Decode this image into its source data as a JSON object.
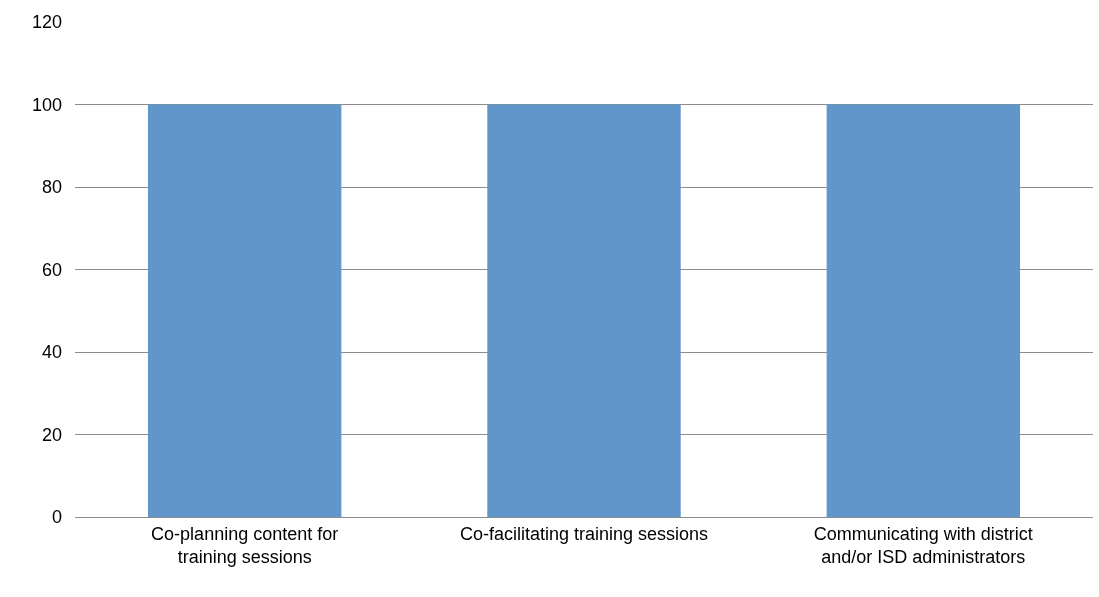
{
  "chart_data": {
    "type": "bar",
    "categories": [
      "Co-planning content for\ntraining sessions",
      "Co-facilitating training sessions",
      "Communicating with district\nand/or ISD administrators"
    ],
    "values": [
      100,
      100,
      100
    ],
    "color": "#6096c9",
    "ylim": [
      0,
      120
    ],
    "yticks": [
      0,
      20,
      40,
      60,
      80,
      100,
      120
    ],
    "grid": "y",
    "legend": false
  }
}
